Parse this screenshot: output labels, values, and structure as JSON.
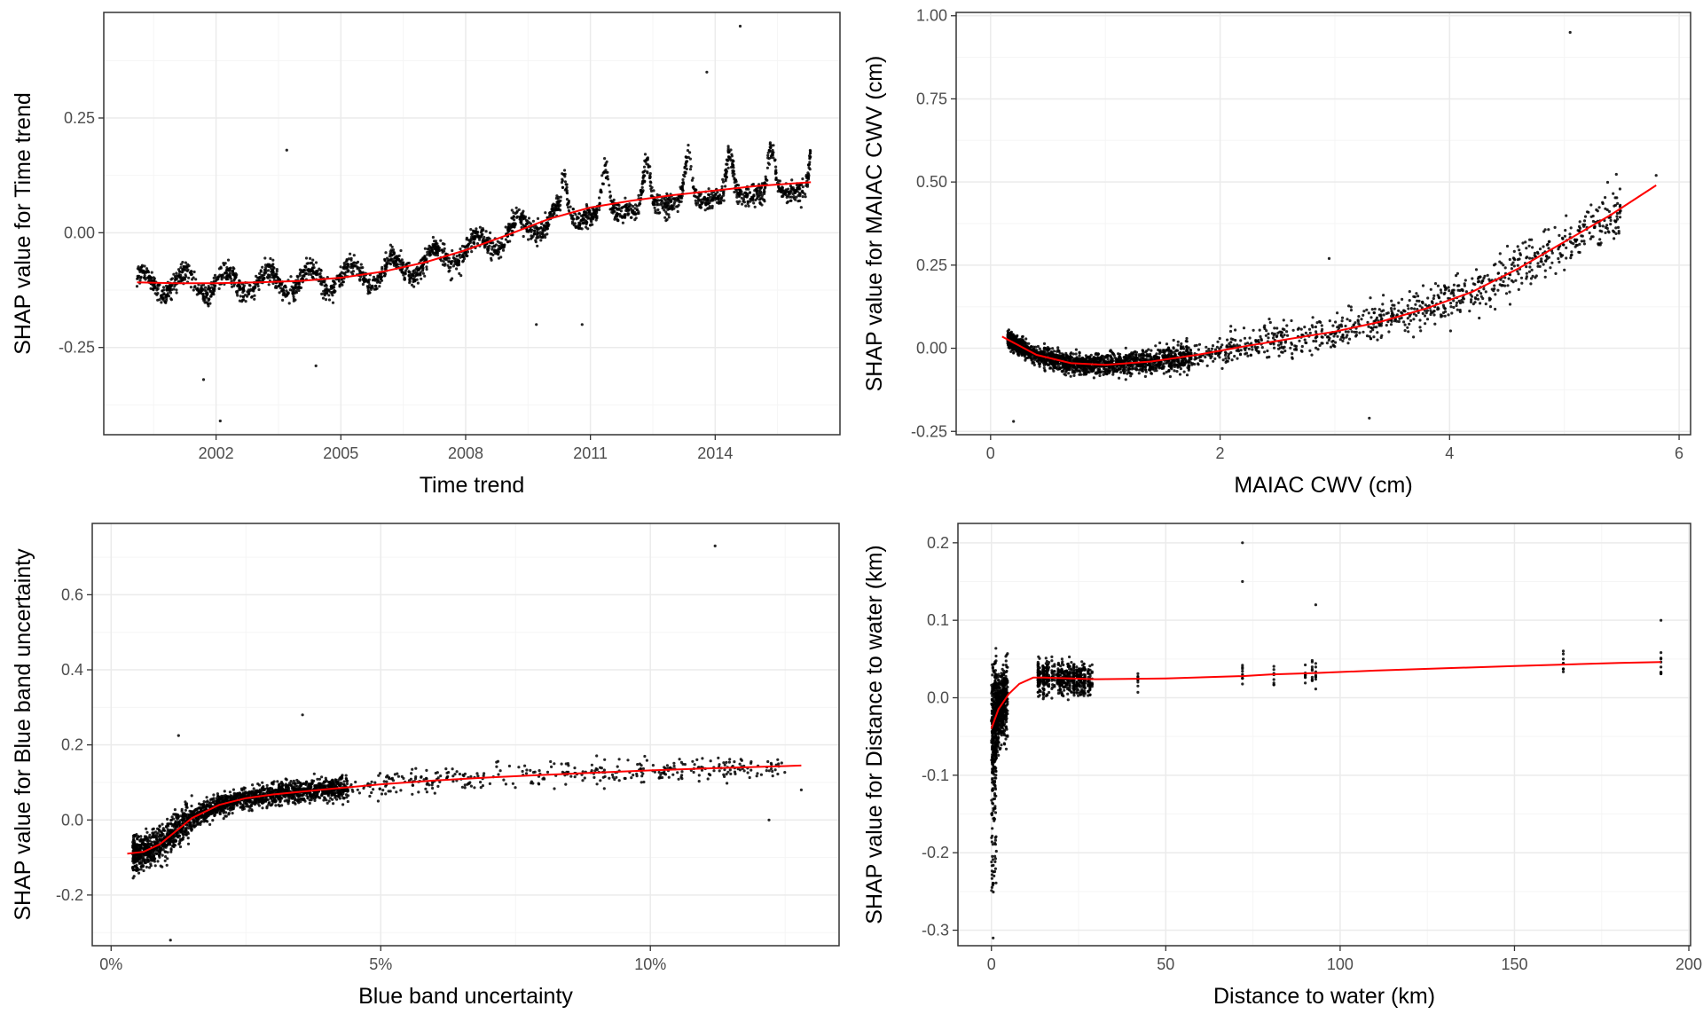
{
  "colors": {
    "background": "#ffffff",
    "panel_border": "#333333",
    "grid_major": "#ebebeb",
    "grid_minor": "#f5f5f5",
    "points": "#000000",
    "smooth_line": "#ff0000",
    "tick_text": "#4d4d4d"
  },
  "chart_data": [
    {
      "id": "time",
      "type": "scatter",
      "xlabel": "Time trend",
      "ylabel": "SHAP value for Time trend",
      "xlim": [
        1999.3,
        2017.0
      ],
      "ylim": [
        -0.44,
        0.48
      ],
      "xticks": [
        2002,
        2005,
        2008,
        2011,
        2014
      ],
      "xtick_labels": [
        "2002",
        "2005",
        "2008",
        "2011",
        "2014"
      ],
      "yticks": [
        -0.25,
        0.0,
        0.25
      ],
      "ytick_labels": [
        "-0.25",
        "0.00",
        "0.25"
      ],
      "grid": true,
      "series": [
        {
          "kind": "points",
          "description_role": "shap_points",
          "clusters": [
            {
              "x0": 2000.1,
              "x1": 2016.3,
              "trend": "rising"
            }
          ],
          "outliers": [
            [
              2002.1,
              -0.41
            ],
            [
              2003.7,
              0.18
            ],
            [
              2009.7,
              -0.2
            ],
            [
              2010.8,
              -0.2
            ],
            [
              2014.6,
              0.45
            ],
            [
              2013.8,
              0.35
            ],
            [
              2001.7,
              -0.32
            ],
            [
              2004.4,
              -0.29
            ]
          ]
        },
        {
          "kind": "line",
          "x": [
            2000.1,
            2001.0,
            2002.0,
            2003.0,
            2004.0,
            2005.0,
            2006.0,
            2007.0,
            2008.0,
            2009.0,
            2010.0,
            2011.0,
            2012.0,
            2013.0,
            2014.0,
            2015.0,
            2016.3
          ],
          "y": [
            -0.108,
            -0.11,
            -0.11,
            -0.108,
            -0.105,
            -0.098,
            -0.085,
            -0.065,
            -0.038,
            -0.005,
            0.03,
            0.055,
            0.07,
            0.082,
            0.092,
            0.102,
            0.11
          ]
        }
      ]
    },
    {
      "id": "cwv",
      "type": "scatter",
      "xlabel": "MAIAC CWV (cm)",
      "ylabel": "SHAP value for MAIAC CWV (cm)",
      "xlim": [
        -0.3,
        6.1
      ],
      "ylim": [
        -0.26,
        1.01
      ],
      "xticks": [
        0,
        2,
        4,
        6
      ],
      "xtick_labels": [
        "0",
        "2",
        "4",
        "6"
      ],
      "yticks": [
        -0.25,
        0.0,
        0.25,
        0.5,
        0.75,
        1.0
      ],
      "ytick_labels": [
        "-0.25",
        "0.00",
        "0.25",
        "0.50",
        "0.75",
        "1.00"
      ],
      "grid": true,
      "series": [
        {
          "kind": "points",
          "outliers": [
            [
              5.05,
              0.95
            ],
            [
              2.95,
              0.27
            ],
            [
              5.8,
              0.52
            ],
            [
              0.2,
              -0.22
            ],
            [
              3.3,
              -0.21
            ]
          ]
        },
        {
          "kind": "line",
          "x": [
            0.1,
            0.4,
            0.7,
            1.0,
            1.4,
            1.8,
            2.2,
            2.6,
            3.0,
            3.4,
            3.8,
            4.2,
            4.6,
            5.0,
            5.4,
            5.8
          ],
          "y": [
            0.035,
            -0.02,
            -0.045,
            -0.05,
            -0.04,
            -0.02,
            0.005,
            0.028,
            0.05,
            0.08,
            0.12,
            0.17,
            0.24,
            0.32,
            0.4,
            0.49
          ]
        }
      ]
    },
    {
      "id": "blue",
      "type": "scatter",
      "xlabel": "Blue band uncertainty",
      "ylabel": "SHAP value for Blue band uncertainty",
      "xlim": [
        -0.0035,
        0.135
      ],
      "ylim": [
        -0.335,
        0.79
      ],
      "xticks": [
        0.0,
        0.05,
        0.1
      ],
      "xtick_labels": [
        "0%",
        "5%",
        "10%"
      ],
      "yticks": [
        -0.2,
        0.0,
        0.2,
        0.4,
        0.6
      ],
      "ytick_labels": [
        "-0.2",
        "0.0",
        "0.2",
        "0.4",
        "0.6"
      ],
      "grid": true,
      "series": [
        {
          "kind": "points",
          "outliers": [
            [
              0.112,
              0.73
            ],
            [
              0.0355,
              0.28
            ],
            [
              0.0125,
              0.225
            ],
            [
              0.122,
              0.0
            ],
            [
              0.128,
              0.08
            ],
            [
              0.011,
              -0.32
            ]
          ]
        },
        {
          "kind": "line",
          "x": [
            0.003,
            0.006,
            0.009,
            0.012,
            0.015,
            0.02,
            0.025,
            0.03,
            0.04,
            0.05,
            0.06,
            0.07,
            0.08,
            0.09,
            0.1,
            0.11,
            0.128
          ],
          "y": [
            -0.09,
            -0.085,
            -0.065,
            -0.03,
            0.005,
            0.04,
            0.058,
            0.068,
            0.082,
            0.095,
            0.105,
            0.113,
            0.12,
            0.126,
            0.132,
            0.137,
            0.145
          ]
        }
      ]
    },
    {
      "id": "water",
      "type": "scatter",
      "xlabel": "Distance to water (km)",
      "ylabel": "SHAP value for Distance to water (km)",
      "xlim": [
        -9.6,
        200.5
      ],
      "ylim": [
        -0.32,
        0.225
      ],
      "xticks": [
        0,
        50,
        100,
        150,
        200
      ],
      "xtick_labels": [
        "0",
        "50",
        "100",
        "150",
        "200"
      ],
      "yticks": [
        -0.3,
        -0.2,
        -0.1,
        0.0,
        0.1,
        0.2
      ],
      "ytick_labels": [
        "-0.3",
        "-0.2",
        "-0.1",
        "0.0",
        "0.1",
        "0.2"
      ],
      "grid": true,
      "series": [
        {
          "kind": "points",
          "outliers": [
            [
              72,
              0.2
            ],
            [
              72,
              0.15
            ],
            [
              0.5,
              -0.31
            ],
            [
              93,
              0.12
            ],
            [
              192,
              0.1
            ]
          ]
        },
        {
          "kind": "line",
          "x": [
            0,
            2,
            5,
            8,
            12,
            15,
            30,
            50,
            72,
            80,
            93,
            110,
            130,
            150,
            165,
            180,
            192
          ],
          "y": [
            -0.04,
            -0.015,
            0.005,
            0.018,
            0.026,
            0.026,
            0.024,
            0.025,
            0.028,
            0.03,
            0.032,
            0.035,
            0.038,
            0.041,
            0.043,
            0.045,
            0.046
          ]
        }
      ]
    }
  ]
}
